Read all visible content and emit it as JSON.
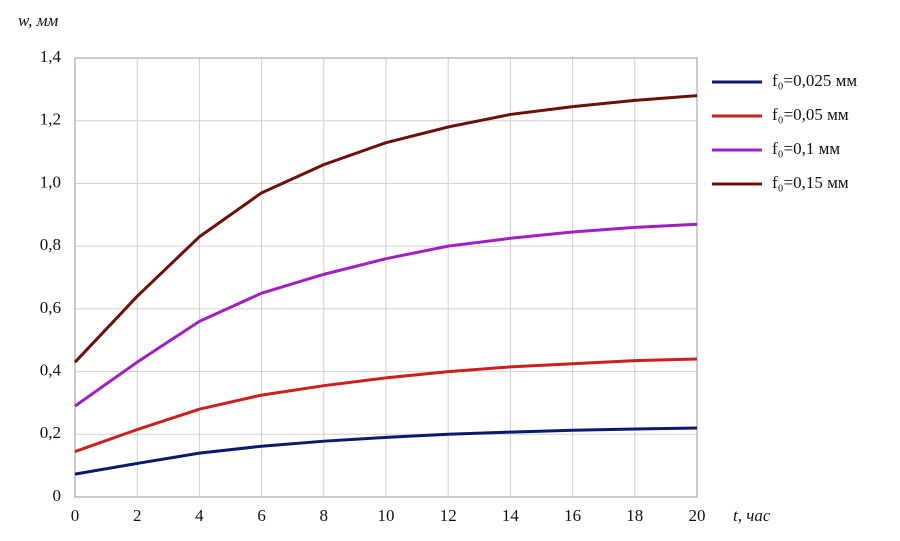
{
  "chart_data": {
    "type": "line",
    "x_label": "t, час",
    "y_label": "w, мм",
    "x": [
      0,
      2,
      4,
      6,
      8,
      10,
      12,
      14,
      16,
      18,
      20
    ],
    "series": [
      {
        "name": "f₀=0,025 мм",
        "color": "#0b1a6e",
        "values": [
          0.073,
          0.107,
          0.14,
          0.162,
          0.178,
          0.19,
          0.2,
          0.207,
          0.213,
          0.217,
          0.22
        ]
      },
      {
        "name": "f₀=0,05 мм",
        "color": "#cc1f1f",
        "values": [
          0.145,
          0.215,
          0.28,
          0.325,
          0.355,
          0.38,
          0.4,
          0.415,
          0.425,
          0.435,
          0.44
        ]
      },
      {
        "name": "f₀=0,1 мм",
        "color": "#a020c0",
        "values": [
          0.29,
          0.43,
          0.56,
          0.65,
          0.71,
          0.76,
          0.8,
          0.825,
          0.845,
          0.86,
          0.87
        ]
      },
      {
        "name": "f₀=0,15 мм",
        "color": "#6b100a",
        "values": [
          0.43,
          0.64,
          0.83,
          0.97,
          1.06,
          1.13,
          1.18,
          1.22,
          1.245,
          1.265,
          1.28
        ]
      }
    ],
    "xlim": [
      0,
      20
    ],
    "xticks": [
      0,
      2,
      4,
      6,
      8,
      10,
      12,
      14,
      16,
      18,
      20
    ],
    "ylim": [
      0,
      1.4
    ],
    "yticks": [
      0,
      {
        "value": 0.2,
        "label": "0,2"
      },
      {
        "value": 0.4,
        "label": "0,4"
      },
      {
        "value": 0.6,
        "label": "0,6"
      },
      {
        "value": 0.8,
        "label": "0,8"
      },
      {
        "value": 1.0,
        "label": "1,0"
      },
      {
        "value": 1.2,
        "label": "1,2"
      },
      {
        "value": 1.4,
        "label": "1,4"
      }
    ],
    "grid": true,
    "legend": "right"
  }
}
